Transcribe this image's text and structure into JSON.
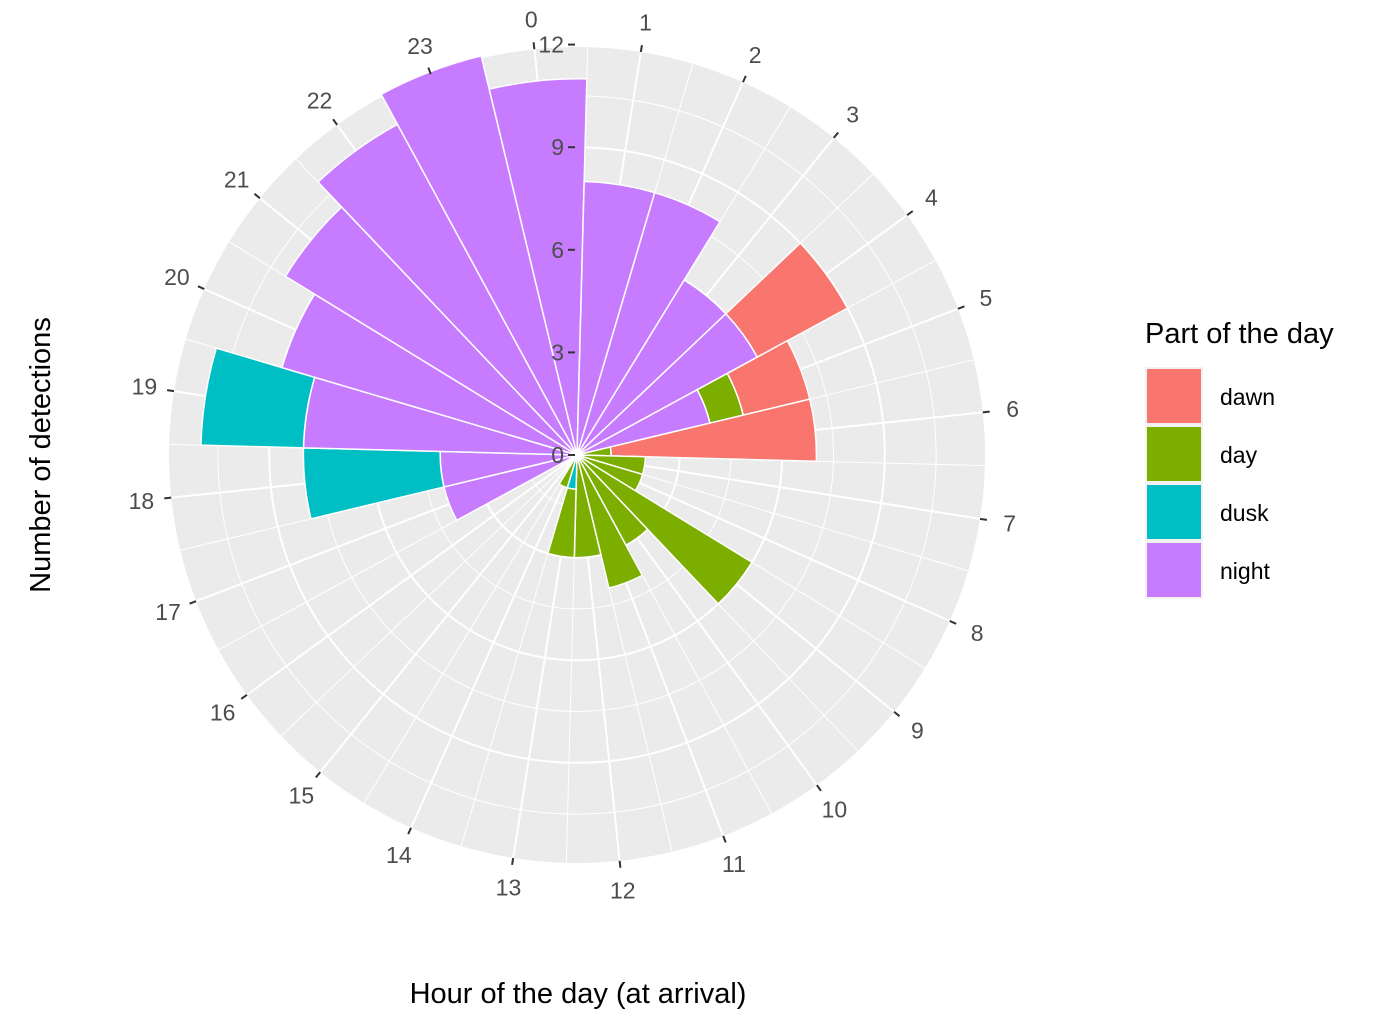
{
  "chart_data": {
    "type": "bar",
    "coord": "polar",
    "xlabel": "Hour of the day (at arrival)",
    "ylabel": "Number of detections",
    "categories": [
      "0",
      "1",
      "2",
      "3",
      "4",
      "5",
      "6",
      "7",
      "8",
      "9",
      "10",
      "11",
      "12",
      "13",
      "14",
      "15",
      "16",
      "17",
      "18",
      "19",
      "20",
      "21",
      "22",
      "23"
    ],
    "ylim": [
      0,
      12
    ],
    "y_ticks": [
      "0",
      "3",
      "6",
      "9",
      "12"
    ],
    "legend": {
      "title": "Part of the day",
      "position": "right"
    },
    "series": [
      {
        "name": "dawn",
        "color": "#F8766D",
        "values": [
          0,
          0,
          0,
          0,
          3,
          2,
          6,
          0,
          0,
          0,
          0,
          0,
          0,
          0,
          0,
          0,
          0,
          0,
          0,
          0,
          0,
          0,
          0,
          0
        ]
      },
      {
        "name": "day",
        "color": "#7CAE00",
        "values": [
          0,
          0,
          0,
          0,
          0,
          1,
          1,
          2,
          2,
          6,
          3,
          4,
          3,
          2,
          1,
          0,
          0,
          0,
          0,
          0,
          0,
          0,
          0,
          0
        ]
      },
      {
        "name": "dusk",
        "color": "#00BFC4",
        "values": [
          0,
          0,
          0,
          0,
          0,
          0,
          0,
          0,
          0,
          0,
          0,
          0,
          0,
          1,
          0,
          0,
          0,
          0,
          4,
          3,
          0,
          0,
          0,
          0
        ]
      },
      {
        "name": "night",
        "color": "#C77CFF",
        "values": [
          11,
          8,
          8,
          6,
          6,
          4,
          0,
          0,
          0,
          0,
          0,
          0,
          0,
          0,
          0,
          0,
          0,
          4,
          4,
          8,
          9,
          10,
          11,
          12
        ]
      }
    ],
    "stack_order": [
      "night",
      "dusk",
      "day",
      "dawn"
    ],
    "panel_background": "#EBEBEB",
    "grid_color": "#FFFFFF",
    "grid": true
  }
}
